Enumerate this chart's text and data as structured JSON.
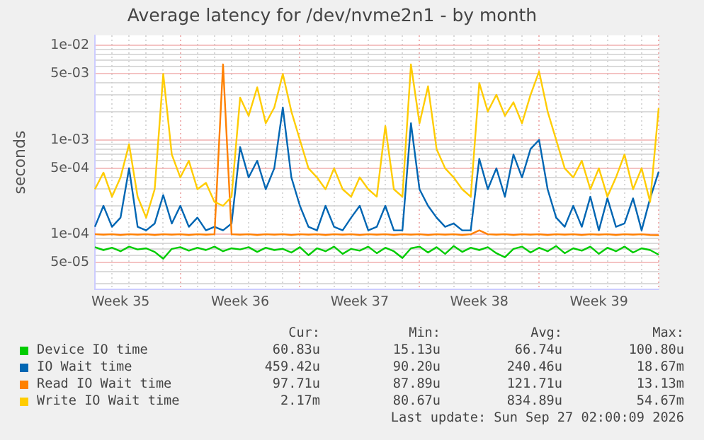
{
  "chart_data": {
    "type": "line",
    "title": "Average latency for /dev/nvme2n1 - by month",
    "ylabel": "seconds",
    "log": "y",
    "categories": [
      null,
      null,
      null,
      "Week 35",
      null,
      null,
      null,
      null,
      null,
      null,
      null,
      null,
      null,
      null,
      null,
      null,
      null,
      "Week 36",
      null,
      null,
      null,
      null,
      null,
      null,
      null,
      null,
      null,
      null,
      null,
      null,
      null,
      "Week 37",
      null,
      null,
      null,
      null,
      null,
      null,
      null,
      null,
      null,
      null,
      null,
      null,
      null,
      "Week 38",
      null,
      null,
      null,
      null,
      null,
      null,
      null,
      null,
      null,
      null,
      null,
      null,
      null,
      "Week 39",
      null,
      null,
      null,
      null,
      null,
      null,
      null
    ],
    "ylim": [
      2.6e-05,
      0.0128
    ],
    "yticks": [
      {
        "value": 3e-05,
        "label": null
      },
      {
        "value": 4e-05,
        "label": null
      },
      {
        "value": 5e-05,
        "label": "5e-05"
      },
      {
        "value": 6e-05,
        "label": null
      },
      {
        "value": 7e-05,
        "label": null
      },
      {
        "value": 8e-05,
        "label": null
      },
      {
        "value": 9e-05,
        "label": null
      },
      {
        "value": 0.0001,
        "label": "1e-04"
      },
      {
        "value": 0.0002,
        "label": null
      },
      {
        "value": 0.0003,
        "label": null
      },
      {
        "value": 0.0004,
        "label": null
      },
      {
        "value": 0.0005,
        "label": "5e-04"
      },
      {
        "value": 0.0006,
        "label": null
      },
      {
        "value": 0.0007,
        "label": null
      },
      {
        "value": 0.0008,
        "label": null
      },
      {
        "value": 0.0009,
        "label": null
      },
      {
        "value": 0.001,
        "label": "1e-03"
      },
      {
        "value": 0.002,
        "label": null
      },
      {
        "value": 0.003,
        "label": null
      },
      {
        "value": 0.004,
        "label": null
      },
      {
        "value": 0.005,
        "label": "5e-03"
      },
      {
        "value": 0.006,
        "label": null
      },
      {
        "value": 0.007,
        "label": null
      },
      {
        "value": 0.008,
        "label": null
      },
      {
        "value": 0.009,
        "label": null
      },
      {
        "value": 0.01,
        "label": "1e-02"
      }
    ],
    "grid": true,
    "legend": "bottom",
    "marker": "none",
    "line_style": "solid",
    "series": [
      {
        "name": "Device IO time",
        "color": "#00cc00",
        "values": [
          7.3e-05,
          6.8e-05,
          7.2e-05,
          6.6e-05,
          7.4e-05,
          6.9e-05,
          7.1e-05,
          6.5e-05,
          5.5e-05,
          7e-05,
          7.3e-05,
          6.7e-05,
          7.2e-05,
          6.8e-05,
          7.4e-05,
          6.6e-05,
          7.1e-05,
          6.9e-05,
          7.3e-05,
          6.5e-05,
          7.2e-05,
          6.8e-05,
          7e-05,
          6.4e-05,
          7.3e-05,
          6e-05,
          7.1e-05,
          6.6e-05,
          7.4e-05,
          6.2e-05,
          7e-05,
          6.7e-05,
          7.4e-05,
          6.3e-05,
          7.2e-05,
          6.6e-05,
          5.6e-05,
          7.1e-05,
          7.4e-05,
          6.4e-05,
          7.3e-05,
          6.2e-05,
          7.5e-05,
          6.5e-05,
          7.2e-05,
          6.8e-05,
          7.3e-05,
          6.3e-05,
          5.7e-05,
          7e-05,
          7.4e-05,
          6.4e-05,
          7.2e-05,
          6.6e-05,
          7.5e-05,
          6.3e-05,
          7.1e-05,
          6.7e-05,
          7.4e-05,
          6.2e-05,
          7.2e-05,
          6.6e-05,
          7.4e-05,
          6.4e-05,
          7.1e-05,
          6.8e-05,
          6.083e-05
        ]
      },
      {
        "name": "IO Wait time",
        "color": "#0066b3",
        "values": [
          0.00012,
          0.0002,
          0.00012,
          0.00015,
          0.0005,
          0.00012,
          0.00011,
          0.00013,
          0.00026,
          0.00013,
          0.0002,
          0.00012,
          0.00015,
          0.00011,
          0.00012,
          0.00011,
          0.00013,
          0.00084,
          0.0004,
          0.0006,
          0.0003,
          0.0005,
          0.0022,
          0.0004,
          0.0002,
          0.00012,
          0.00011,
          0.0002,
          0.00012,
          0.00011,
          0.00015,
          0.0002,
          0.00011,
          0.00012,
          0.0002,
          0.00011,
          0.00011,
          0.0015,
          0.0003,
          0.0002,
          0.00015,
          0.00012,
          0.00013,
          0.00011,
          0.00011,
          0.00063,
          0.0003,
          0.0005,
          0.00025,
          0.0007,
          0.0004,
          0.0008,
          0.001,
          0.0003,
          0.00015,
          0.00012,
          0.0002,
          0.00012,
          0.00025,
          0.00011,
          0.00024,
          0.00012,
          0.00013,
          0.00024,
          0.00011,
          0.00024,
          0.00045942
        ]
      },
      {
        "name": "Read IO Wait time",
        "color": "#ff8000",
        "values": [
          0.0001,
          9.9e-05,
          0.0001,
          9.8e-05,
          0.0001,
          9.9e-05,
          0.0001,
          9.8e-05,
          0.0001,
          9.9e-05,
          0.0001,
          9.8e-05,
          0.0001,
          9.9e-05,
          0.0001,
          0.0063,
          0.0001,
          9.9e-05,
          0.0001,
          9.8e-05,
          0.0001,
          9.9e-05,
          0.0001,
          9.8e-05,
          0.0001,
          9.9e-05,
          0.0001,
          9.8e-05,
          0.0001,
          9.9e-05,
          0.0001,
          9.8e-05,
          0.0001,
          9.9e-05,
          0.0001,
          9.8e-05,
          0.0001,
          9.9e-05,
          0.0001,
          9.8e-05,
          0.0001,
          9.9e-05,
          0.0001,
          9.8e-05,
          0.0001,
          0.00011,
          0.0001,
          9.9e-05,
          0.0001,
          9.8e-05,
          0.0001,
          9.9e-05,
          0.0001,
          9.8e-05,
          0.0001,
          9.9e-05,
          0.0001,
          9.8e-05,
          0.0001,
          9.9e-05,
          0.0001,
          9.8e-05,
          0.0001,
          9.9e-05,
          0.0001,
          9.8e-05,
          9.771e-05
        ]
      },
      {
        "name": "Write IO Wait time",
        "color": "#ffcc00",
        "values": [
          0.0003,
          0.00045,
          0.00025,
          0.0004,
          0.0009,
          0.00025,
          0.00015,
          0.0003,
          0.005,
          0.0007,
          0.0004,
          0.0006,
          0.0003,
          0.00035,
          0.00022,
          0.0002,
          0.00025,
          0.0028,
          0.0018,
          0.0036,
          0.0015,
          0.0022,
          0.005,
          0.002,
          0.001,
          0.0005,
          0.0004,
          0.0003,
          0.0005,
          0.0003,
          0.00025,
          0.0004,
          0.0003,
          0.00025,
          0.0014,
          0.0003,
          0.00025,
          0.0063,
          0.0015,
          0.0037,
          0.0008,
          0.0005,
          0.0004,
          0.0003,
          0.00025,
          0.004,
          0.002,
          0.003,
          0.0018,
          0.0025,
          0.0015,
          0.003,
          0.0053,
          0.002,
          0.001,
          0.0005,
          0.0004,
          0.0006,
          0.0003,
          0.0005,
          0.00025,
          0.0004,
          0.0007,
          0.0003,
          0.0005,
          0.00022,
          0.00217
        ]
      }
    ],
    "annotations": [
      "Cur:",
      "Min:",
      "Avg:",
      "Max:",
      "60.83u",
      "15.13u",
      "66.74u",
      "100.80u",
      "459.42u",
      "90.20u",
      "240.46u",
      "18.67m",
      "97.71u",
      "87.89u",
      "121.71u",
      "13.13m",
      "2.17m",
      "80.67u",
      "834.89u",
      "54.67m",
      "Last update: Sun Sep 27 02:00:09 2026"
    ]
  }
}
